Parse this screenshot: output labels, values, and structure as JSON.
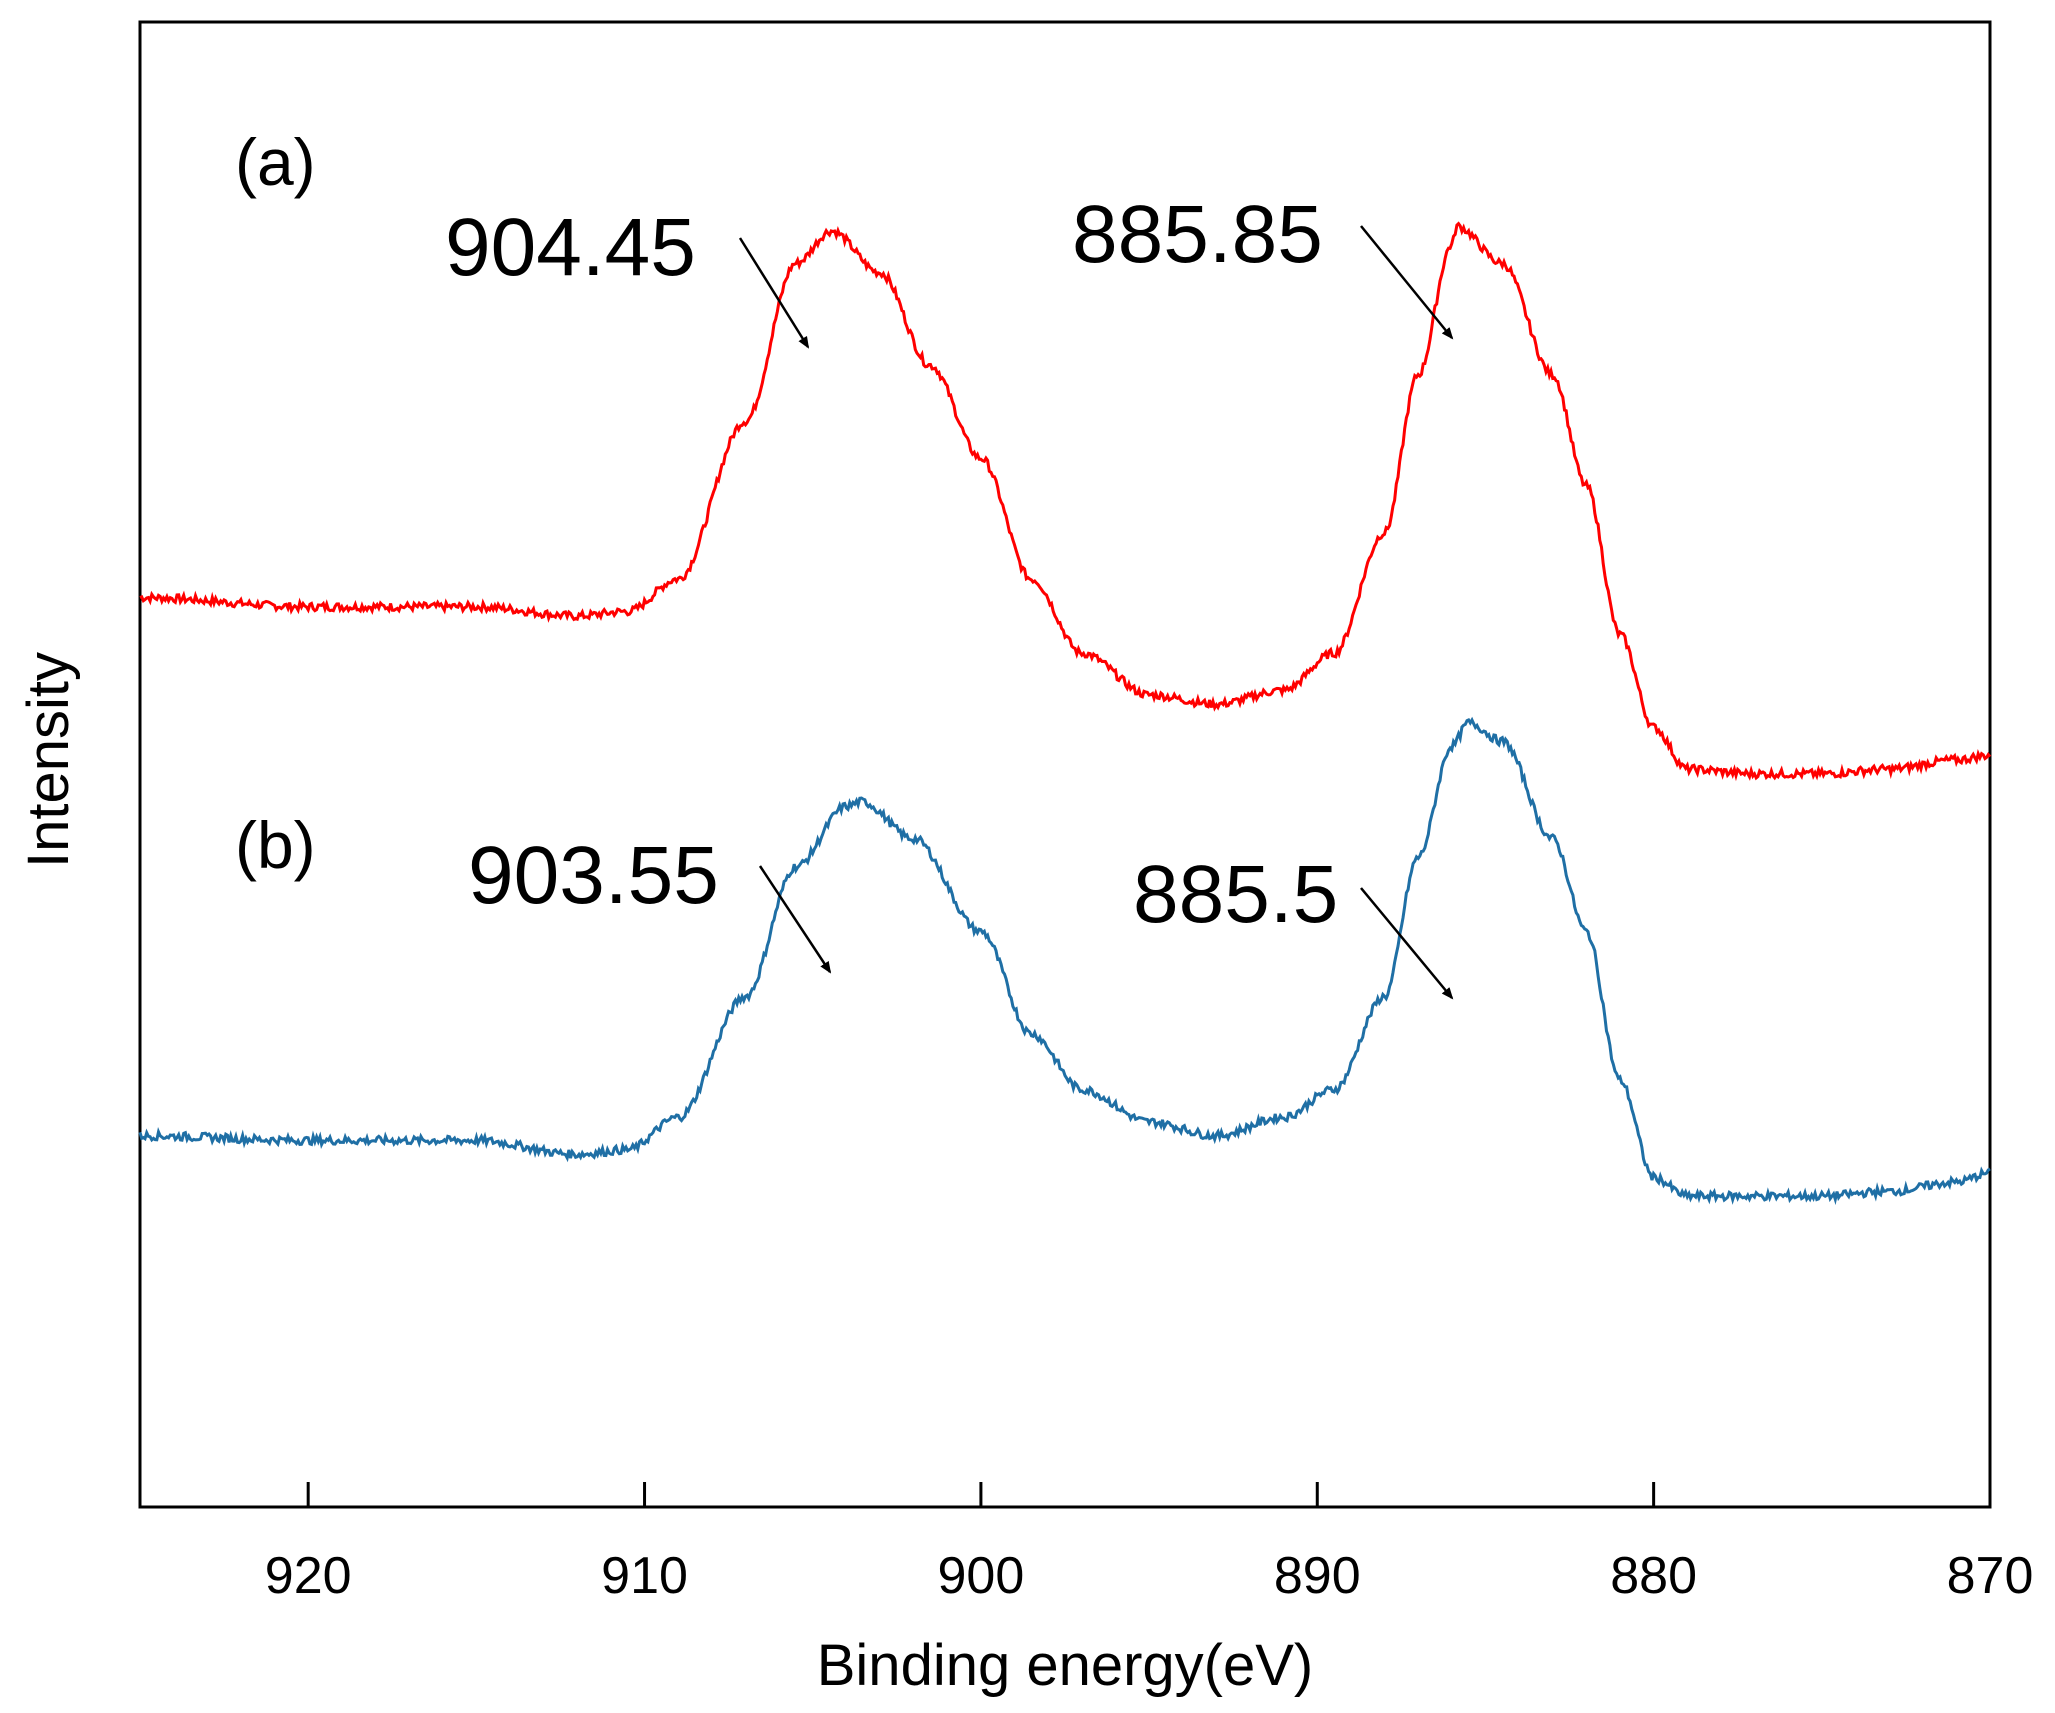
{
  "chart_data": {
    "type": "line",
    "xlabel": "Binding energy(eV)",
    "ylabel": "Intensity",
    "xlim": [
      925,
      870
    ],
    "ylim": [
      0,
      160
    ],
    "x_ticks": [
      920,
      910,
      900,
      890,
      880,
      870
    ],
    "x_tick_labels": [
      "920",
      "910",
      "900",
      "890",
      "880",
      "870"
    ],
    "y_ticks_shown": false,
    "grid": false,
    "legend": "none",
    "series": [
      {
        "name": "(a)",
        "label": "(a)",
        "color": "#ff0000",
        "x": [
          925,
          920,
          915,
          912,
          910.5,
          909,
          907,
          905.5,
          904.45,
          903,
          901.5,
          900,
          898.5,
          897,
          895,
          893,
          891,
          889.5,
          888,
          887,
          886,
          885.85,
          884.5,
          883,
          882,
          881,
          880,
          879,
          877,
          875,
          873,
          871,
          870
        ],
        "y": [
          98,
          97,
          97,
          96,
          96.5,
          100,
          117,
          134,
          137.5,
          133,
          123,
          113,
          100,
          92,
          87.5,
          86.5,
          88,
          92,
          105,
          122,
          136,
          138,
          134,
          122,
          110,
          94,
          84,
          79.5,
          79,
          79,
          79.5,
          80.5,
          81
        ],
        "peak_annotations": [
          {
            "label": "904.45",
            "x": 904.45
          },
          {
            "label": "885.85",
            "x": 885.85
          }
        ]
      },
      {
        "name": "(b)",
        "label": "(b)",
        "color": "#1f6fa5",
        "x": [
          925,
          920,
          915,
          912,
          910.5,
          909,
          907,
          905.5,
          904,
          903.55,
          902,
          900,
          898.5,
          897,
          895,
          893,
          891,
          889.5,
          888,
          887,
          886,
          885.5,
          884.5,
          883,
          882,
          881,
          880,
          879,
          877,
          875,
          873,
          871,
          870
        ],
        "y": [
          40,
          39.5,
          39.5,
          38,
          38.5,
          42,
          55,
          69,
          75.5,
          76,
          72,
          62,
          51,
          45,
          41.5,
          40,
          42,
          45,
          55,
          70,
          82,
          84.5,
          82.5,
          72,
          62,
          46,
          35.5,
          33.5,
          33.5,
          33.5,
          34,
          35,
          36
        ],
        "peak_annotations": [
          {
            "label": "903.55",
            "x": 903.55
          },
          {
            "label": "885.5",
            "x": 885.5
          }
        ]
      }
    ]
  }
}
